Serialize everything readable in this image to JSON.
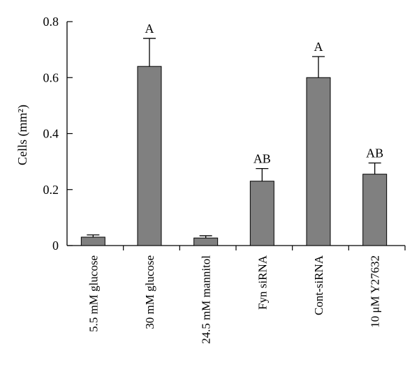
{
  "chart_data": {
    "type": "bar",
    "categories": [
      "5.5 mM glucose",
      "30 mM glucose",
      "24.5 mM mannitol",
      "Fyn siRNA",
      "Cont-siRNA",
      "10 μM Y27632"
    ],
    "values": [
      0.03,
      0.64,
      0.027,
      0.23,
      0.6,
      0.255
    ],
    "errors": [
      0.008,
      0.1,
      0.008,
      0.045,
      0.075,
      0.04
    ],
    "annotations": [
      "",
      "A",
      "",
      "AB",
      "A",
      "AB"
    ],
    "ylabel": "Cells (mm²)",
    "ylim": [
      0,
      0.8
    ],
    "yticks": [
      "0",
      "0.2",
      "0.4",
      "0.6",
      "0.8"
    ],
    "bar_color": "#808080",
    "grid": false,
    "legend": "none"
  }
}
